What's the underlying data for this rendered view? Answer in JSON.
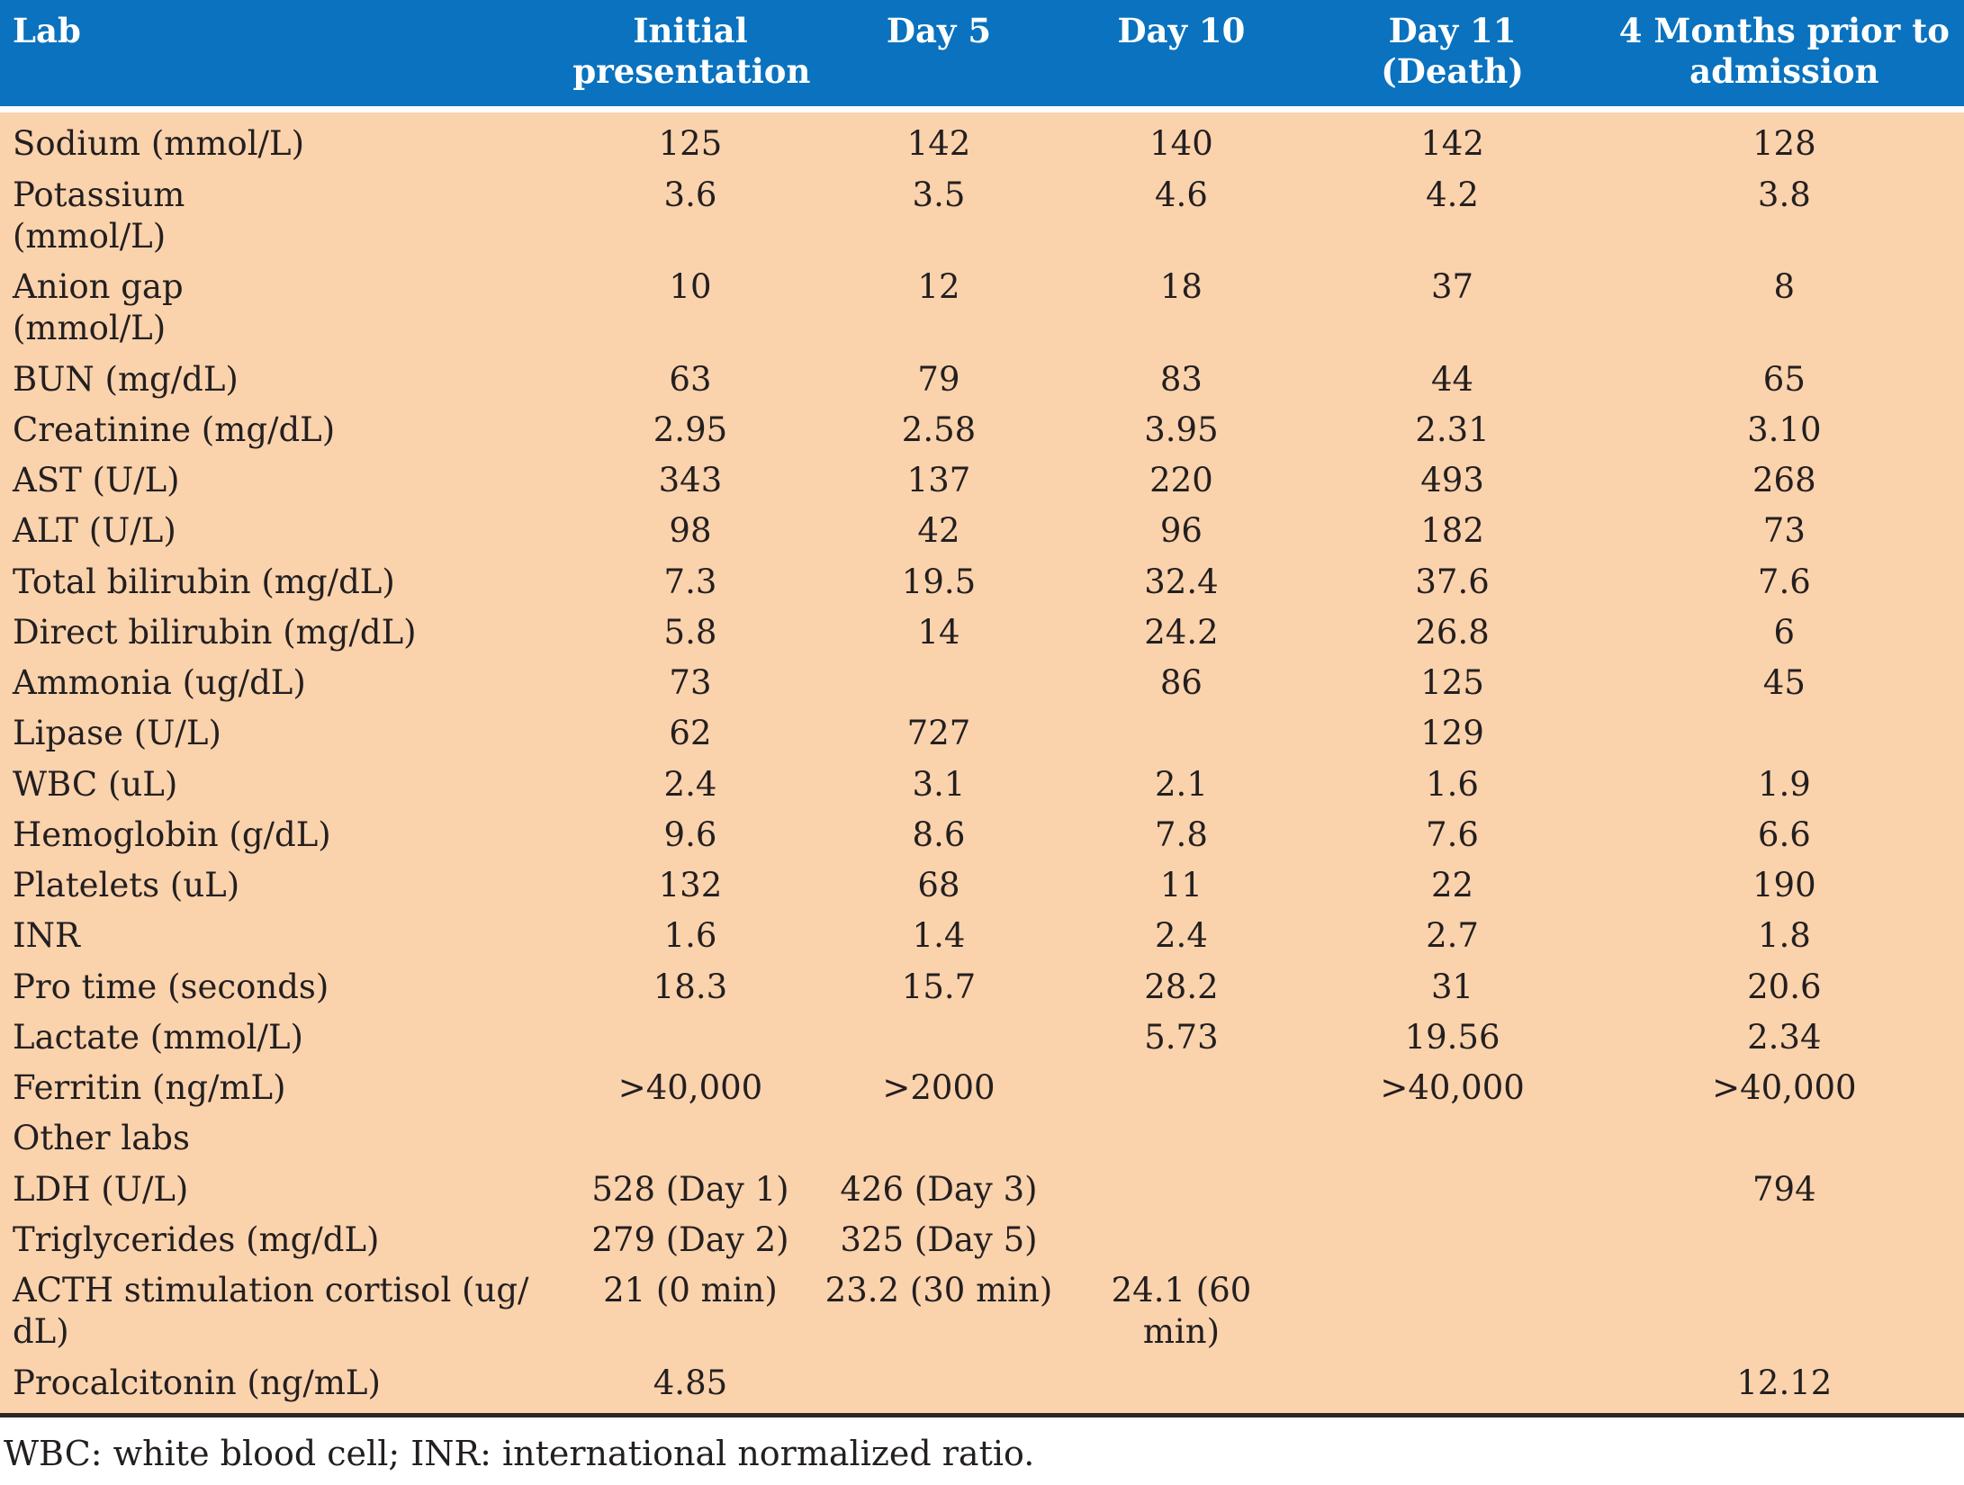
{
  "table": {
    "columns": [
      {
        "label": "Lab"
      },
      {
        "label": "Initial\npresentation"
      },
      {
        "label": "Day 5"
      },
      {
        "label": "Day 10"
      },
      {
        "label": "Day 11\n(Death)"
      },
      {
        "label": "4 Months prior to\nadmission"
      }
    ],
    "rows": [
      {
        "label": "Sodium (mmol/L)",
        "values": [
          "125",
          "142",
          "140",
          "142",
          "128"
        ]
      },
      {
        "label": "Potassium\n(mmol/L)",
        "values": [
          "3.6",
          "3.5",
          "4.6",
          "4.2",
          "3.8"
        ]
      },
      {
        "label": "Anion gap\n(mmol/L)",
        "values": [
          "10",
          "12",
          "18",
          "37",
          "8"
        ]
      },
      {
        "label": "BUN (mg/dL)",
        "values": [
          "63",
          "79",
          "83",
          "44",
          "65"
        ]
      },
      {
        "label": "Creatinine (mg/dL)",
        "values": [
          "2.95",
          "2.58",
          "3.95",
          "2.31",
          "3.10"
        ]
      },
      {
        "label": "AST (U/L)",
        "values": [
          "343",
          "137",
          "220",
          "493",
          "268"
        ]
      },
      {
        "label": "ALT (U/L)",
        "values": [
          "98",
          "42",
          "96",
          "182",
          "73"
        ]
      },
      {
        "label": "Total bilirubin (mg/dL)",
        "values": [
          "7.3",
          "19.5",
          "32.4",
          "37.6",
          "7.6"
        ]
      },
      {
        "label": "Direct bilirubin (mg/dL)",
        "values": [
          "5.8",
          "14",
          "24.2",
          "26.8",
          "6"
        ]
      },
      {
        "label": "Ammonia (ug/dL)",
        "values": [
          "73",
          "",
          "86",
          "125",
          "45"
        ]
      },
      {
        "label": "Lipase (U/L)",
        "values": [
          "62",
          "727",
          "",
          "129",
          ""
        ]
      },
      {
        "label": "WBC (uL)",
        "values": [
          "2.4",
          "3.1",
          "2.1",
          "1.6",
          "1.9"
        ]
      },
      {
        "label": "Hemoglobin (g/dL)",
        "values": [
          "9.6",
          "8.6",
          "7.8",
          "7.6",
          "6.6"
        ]
      },
      {
        "label": "Platelets (uL)",
        "values": [
          "132",
          "68",
          "11",
          "22",
          "190"
        ]
      },
      {
        "label": "INR",
        "values": [
          "1.6",
          "1.4",
          "2.4",
          "2.7",
          "1.8"
        ]
      },
      {
        "label": "Pro time (seconds)",
        "values": [
          "18.3",
          "15.7",
          "28.2",
          "31",
          "20.6"
        ]
      },
      {
        "label": "Lactate (mmol/L)",
        "values": [
          "",
          "",
          "5.73",
          "19.56",
          "2.34"
        ]
      },
      {
        "label": "Ferritin (ng/mL)",
        "values": [
          ">40,000",
          ">2000",
          "",
          ">40,000",
          ">40,000"
        ]
      },
      {
        "label": "Other labs",
        "values": [
          "",
          "",
          "",
          "",
          ""
        ]
      },
      {
        "label": "LDH (U/L)",
        "values": [
          "528 (Day 1)",
          "426 (Day 3)",
          "",
          "",
          "794"
        ]
      },
      {
        "label": "Triglycerides (mg/dL)",
        "values": [
          "279 (Day 2)",
          "325 (Day 5)",
          "",
          "",
          ""
        ]
      },
      {
        "label": "ACTH stimulation cortisol (ug/\ndL)",
        "values": [
          "21 (0 min)",
          "23.2 (30 min)",
          "24.1 (60 min)",
          "",
          ""
        ]
      },
      {
        "label": "Procalcitonin (ng/mL)",
        "values": [
          "4.85",
          "",
          "",
          "",
          "12.12"
        ]
      }
    ]
  },
  "footnote": "WBC: white blood cell; INR: international normalized ratio.",
  "colors": {
    "header_bg": "#0a72be",
    "header_text": "#ffffff",
    "body_bg": "#fad2ac",
    "body_text": "#231f20",
    "bottom_border": "#2a2626"
  }
}
